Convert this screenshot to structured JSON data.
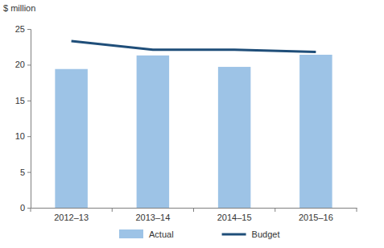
{
  "chart_data": {
    "type": "bar",
    "ylabel": "$ million",
    "categories": [
      "2012–13",
      "2013–14",
      "2014–15",
      "2015–16"
    ],
    "series": [
      {
        "name": "Actual",
        "type": "bar",
        "color": "#9dc3e6",
        "values": [
          19.4,
          21.3,
          19.7,
          21.4
        ]
      },
      {
        "name": "Budget",
        "type": "line",
        "color": "#1f4e79",
        "values": [
          23.3,
          22.1,
          22.1,
          21.8
        ]
      }
    ],
    "ylim": [
      0,
      25
    ],
    "yticks": [
      0,
      5,
      10,
      15,
      20,
      25
    ],
    "grid": false,
    "legend": "bottom"
  }
}
